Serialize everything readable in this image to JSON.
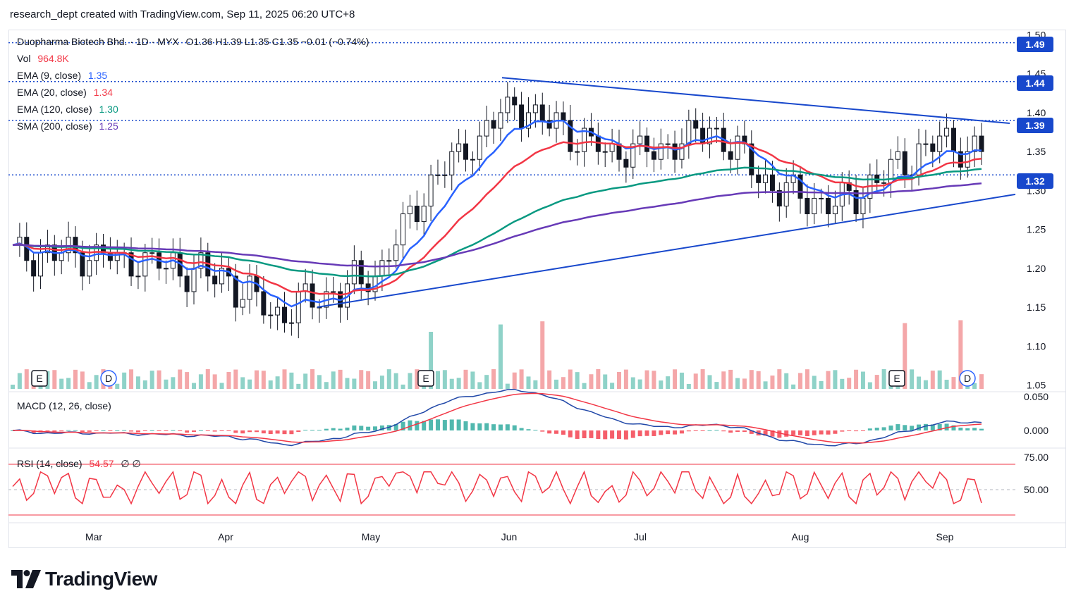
{
  "header": {
    "caption": "research_dept created with TradingView.com, Sep 11, 2025 06:20 UTC+8"
  },
  "legend": {
    "symbol": "Duopharma Biotech Bhd. · 1D · MYX",
    "ohlc": "O1.36 H1.39 L1.35 C1.35 −0.01 (−0.74%)",
    "vol_label": "Vol",
    "vol_value": "964.8K",
    "ema9_label": "EMA (9, close)",
    "ema9_value": "1.35",
    "ema20_label": "EMA (20, close)",
    "ema20_value": "1.34",
    "ema120_label": "EMA (120, close)",
    "ema120_value": "1.30",
    "sma200_label": "SMA (200, close)",
    "sma200_value": "1.25",
    "macd_label": "MACD (12, 26, close)",
    "rsi_label": "RSI (14, close)",
    "rsi_value": "54.57",
    "rsi_extra": "∅ ∅"
  },
  "price_tags": [
    "1.49",
    "1.44",
    "1.39",
    "1.32"
  ],
  "event_markers": [
    "E",
    "D",
    "E",
    "E",
    "D"
  ],
  "brand": {
    "name": "TradingView"
  },
  "colors": {
    "up": "#ffffff",
    "down": "#131722",
    "vol_up": "#8fd2c8",
    "vol_down": "#f4a7a9",
    "ema9": "#2962ff",
    "ema20": "#f23645",
    "ema120": "#089981",
    "sma200": "#673ab7",
    "trend": "#1848cc",
    "macd": "#2148a8",
    "signal": "#f23645",
    "rsi": "#f23645"
  },
  "chart_data": {
    "type": "candlestick",
    "x_ticks": [
      "Mar",
      "Apr",
      "May",
      "Jun",
      "Jul",
      "Aug",
      "Sep"
    ],
    "price_ticks": [
      "1.50",
      "1.45",
      "1.40",
      "1.35",
      "1.30",
      "1.25",
      "1.20",
      "1.15",
      "1.10",
      "1.05"
    ],
    "price_range": [
      1.045,
      1.505
    ],
    "macd_ticks": [
      "0.050",
      "0.000"
    ],
    "rsi_ticks": [
      "75.00",
      "50.00"
    ],
    "horizontal_levels": [
      1.49,
      1.44,
      1.39,
      1.32
    ],
    "trendlines": [
      {
        "from": [
          "2025-05-29",
          1.445
        ],
        "to": [
          "2025-09-10",
          1.39
        ]
      },
      {
        "from": [
          "2025-04-18",
          1.15
        ],
        "to": [
          "2025-09-10",
          1.29
        ]
      }
    ],
    "anchors": [
      {
        "month": "Mar",
        "close": 1.22
      },
      {
        "month": "Apr",
        "close": 1.19
      },
      {
        "month": "Apr-mid",
        "close": 1.14
      },
      {
        "month": "May",
        "close": 1.19
      },
      {
        "month": "May-mid",
        "close": 1.31
      },
      {
        "month": "Jun",
        "close": 1.41
      },
      {
        "month": "Jun-mid",
        "close": 1.35
      },
      {
        "month": "Jul",
        "close": 1.35
      },
      {
        "month": "Jul-mid",
        "close": 1.38
      },
      {
        "month": "Aug",
        "close": 1.3
      },
      {
        "month": "Aug-mid",
        "close": 1.28
      },
      {
        "month": "Sep",
        "close": 1.36
      },
      {
        "month": "Sep-10",
        "close": 1.35
      }
    ]
  }
}
